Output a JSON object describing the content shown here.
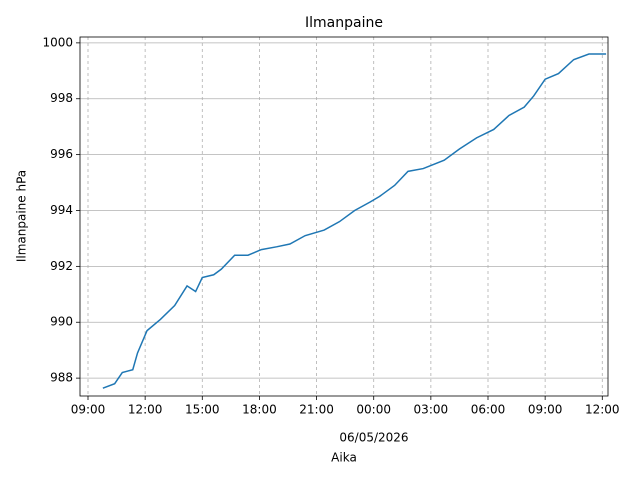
{
  "chart_data": {
    "type": "line",
    "title": "Ilmanpaine",
    "xlabel": "Aika",
    "ylabel": "Ilmanpaine hPa",
    "x_offset_label": "06/05/2026",
    "x": [
      9.78,
      10.4,
      10.8,
      11.35,
      11.6,
      12.1,
      12.8,
      13.55,
      14.2,
      14.65,
      15.0,
      15.6,
      16.0,
      16.7,
      17.4,
      18.1,
      18.9,
      19.6,
      20.4,
      21.4,
      22.2,
      23.0,
      23.8,
      24.3,
      25.1,
      25.8,
      26.6,
      27.7,
      28.5,
      29.4,
      30.3,
      31.1,
      31.9,
      32.4,
      33.0,
      33.7,
      34.5,
      35.3,
      36.2
    ],
    "series": [
      {
        "name": "Ilmanpaine",
        "color": "#1f77b4",
        "values": [
          987.64,
          987.8,
          988.2,
          988.3,
          988.9,
          989.7,
          990.1,
          990.6,
          991.3,
          991.1,
          991.6,
          991.7,
          991.9,
          992.4,
          992.4,
          992.6,
          992.7,
          992.8,
          993.1,
          993.3,
          993.6,
          994.0,
          994.3,
          994.5,
          994.9,
          995.4,
          995.5,
          995.8,
          996.2,
          996.6,
          996.9,
          997.4,
          997.7,
          998.1,
          998.7,
          998.9,
          999.4,
          999.6,
          999.6
        ]
      }
    ],
    "xlim": [
      8.58,
      36.3
    ],
    "ylim": [
      987.36,
      1000.21
    ],
    "xticks": [
      {
        "value": 9,
        "label": "09:00"
      },
      {
        "value": 12,
        "label": "12:00"
      },
      {
        "value": 15,
        "label": "15:00"
      },
      {
        "value": 18,
        "label": "18:00"
      },
      {
        "value": 21,
        "label": "21:00"
      },
      {
        "value": 24,
        "label": "00:00"
      },
      {
        "value": 27,
        "label": "03:00"
      },
      {
        "value": 30,
        "label": "06:00"
      },
      {
        "value": 33,
        "label": "09:00"
      },
      {
        "value": 36,
        "label": "12:00"
      }
    ],
    "yticks": [
      988,
      990,
      992,
      994,
      996,
      998,
      1000
    ],
    "grid": true
  }
}
